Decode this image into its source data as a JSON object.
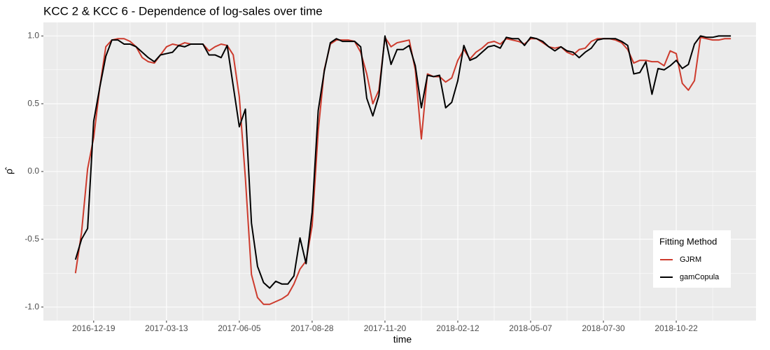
{
  "chart_data": {
    "type": "line",
    "title": "KCC 2 & KCC 6 - Dependence of log-sales over time",
    "x_label": "time",
    "y_label": "ρ̂",
    "legend_title": "Fitting Method",
    "legend_position": "bottom-right",
    "grid": true,
    "x": [
      "2016-11-28",
      "2016-12-05",
      "2016-12-12",
      "2016-12-19",
      "2016-12-26",
      "2017-01-02",
      "2017-01-09",
      "2017-01-16",
      "2017-01-23",
      "2017-01-30",
      "2017-02-06",
      "2017-02-13",
      "2017-02-20",
      "2017-02-27",
      "2017-03-06",
      "2017-03-13",
      "2017-03-20",
      "2017-03-27",
      "2017-04-03",
      "2017-04-10",
      "2017-04-17",
      "2017-04-24",
      "2017-05-01",
      "2017-05-08",
      "2017-05-15",
      "2017-05-22",
      "2017-05-29",
      "2017-06-05",
      "2017-06-12",
      "2017-06-19",
      "2017-06-26",
      "2017-07-03",
      "2017-07-10",
      "2017-07-17",
      "2017-07-24",
      "2017-07-31",
      "2017-08-07",
      "2017-08-14",
      "2017-08-21",
      "2017-08-28",
      "2017-09-04",
      "2017-09-11",
      "2017-09-18",
      "2017-09-25",
      "2017-10-02",
      "2017-10-09",
      "2017-10-16",
      "2017-10-23",
      "2017-10-30",
      "2017-11-06",
      "2017-11-13",
      "2017-11-20",
      "2017-11-27",
      "2017-12-04",
      "2017-12-11",
      "2017-12-18",
      "2017-12-25",
      "2018-01-01",
      "2018-01-08",
      "2018-01-15",
      "2018-01-22",
      "2018-01-29",
      "2018-02-05",
      "2018-02-12",
      "2018-02-19",
      "2018-02-26",
      "2018-03-05",
      "2018-03-12",
      "2018-03-19",
      "2018-03-26",
      "2018-04-02",
      "2018-04-09",
      "2018-04-16",
      "2018-04-23",
      "2018-04-30",
      "2018-05-07",
      "2018-05-14",
      "2018-05-21",
      "2018-05-28",
      "2018-06-04",
      "2018-06-11",
      "2018-06-18",
      "2018-06-25",
      "2018-07-02",
      "2018-07-09",
      "2018-07-16",
      "2018-07-23",
      "2018-07-30",
      "2018-08-06",
      "2018-08-13",
      "2018-08-20",
      "2018-08-27",
      "2018-09-03",
      "2018-09-10",
      "2018-09-17",
      "2018-09-24",
      "2018-10-01",
      "2018-10-08",
      "2018-10-15",
      "2018-10-22",
      "2018-10-29",
      "2018-11-05",
      "2018-11-12",
      "2018-11-19",
      "2018-11-26",
      "2018-12-03",
      "2018-12-10",
      "2018-12-17",
      "2018-12-24"
    ],
    "series": [
      {
        "name": "GJRM",
        "color": "#cd3b2d",
        "values": [
          -0.75,
          -0.45,
          0.02,
          0.25,
          0.62,
          0.92,
          0.97,
          0.98,
          0.98,
          0.96,
          0.92,
          0.84,
          0.81,
          0.8,
          0.86,
          0.92,
          0.94,
          0.93,
          0.95,
          0.94,
          0.94,
          0.94,
          0.89,
          0.92,
          0.94,
          0.93,
          0.86,
          0.55,
          -0.05,
          -0.76,
          -0.93,
          -0.98,
          -0.98,
          -0.96,
          -0.94,
          -0.91,
          -0.83,
          -0.72,
          -0.66,
          -0.4,
          0.3,
          0.75,
          0.94,
          0.97,
          0.97,
          0.97,
          0.96,
          0.88,
          0.72,
          0.5,
          0.6,
          0.99,
          0.92,
          0.95,
          0.96,
          0.97,
          0.75,
          0.24,
          0.72,
          0.7,
          0.7,
          0.66,
          0.69,
          0.82,
          0.9,
          0.83,
          0.88,
          0.91,
          0.95,
          0.96,
          0.94,
          0.98,
          0.97,
          0.96,
          0.94,
          0.98,
          0.98,
          0.95,
          0.92,
          0.91,
          0.92,
          0.88,
          0.86,
          0.9,
          0.91,
          0.96,
          0.98,
          0.98,
          0.98,
          0.97,
          0.95,
          0.9,
          0.8,
          0.82,
          0.82,
          0.81,
          0.81,
          0.78,
          0.89,
          0.87,
          0.65,
          0.6,
          0.67,
          0.99,
          0.98,
          0.97,
          0.97,
          0.98,
          0.98
        ]
      },
      {
        "name": "gamCopula",
        "color": "#000000",
        "values": [
          -0.65,
          -0.5,
          -0.42,
          0.37,
          0.62,
          0.85,
          0.97,
          0.97,
          0.94,
          0.94,
          0.92,
          0.88,
          0.84,
          0.81,
          0.86,
          0.87,
          0.88,
          0.93,
          0.92,
          0.94,
          0.94,
          0.94,
          0.86,
          0.86,
          0.84,
          0.93,
          0.63,
          0.33,
          0.46,
          -0.38,
          -0.7,
          -0.82,
          -0.86,
          -0.81,
          -0.83,
          -0.83,
          -0.77,
          -0.49,
          -0.68,
          -0.3,
          0.45,
          0.74,
          0.95,
          0.98,
          0.96,
          0.96,
          0.96,
          0.92,
          0.54,
          0.41,
          0.56,
          1.0,
          0.79,
          0.9,
          0.9,
          0.93,
          0.78,
          0.47,
          0.71,
          0.7,
          0.71,
          0.47,
          0.51,
          0.67,
          0.93,
          0.82,
          0.84,
          0.88,
          0.92,
          0.93,
          0.91,
          0.99,
          0.98,
          0.98,
          0.93,
          0.99,
          0.98,
          0.96,
          0.92,
          0.89,
          0.92,
          0.89,
          0.88,
          0.84,
          0.88,
          0.91,
          0.97,
          0.98,
          0.98,
          0.98,
          0.96,
          0.93,
          0.72,
          0.73,
          0.81,
          0.57,
          0.76,
          0.75,
          0.78,
          0.82,
          0.76,
          0.79,
          0.94,
          1.0,
          0.99,
          0.99,
          1.0,
          1.0,
          1.0
        ]
      }
    ],
    "xlim": [
      "2016-10-22",
      "2019-01-22"
    ],
    "xticks": [
      "2016-12-19",
      "2017-03-13",
      "2017-06-05",
      "2017-08-28",
      "2017-11-20",
      "2018-02-12",
      "2018-05-07",
      "2018-07-30",
      "2018-10-22"
    ],
    "ylim": [
      -1.1,
      1.1
    ],
    "yticks": [
      {
        "value": -1,
        "label": "-1.0"
      },
      -0.5,
      {
        "value": 0,
        "label": "0.0"
      },
      0.5,
      {
        "value": 1,
        "label": "1.0"
      }
    ]
  }
}
